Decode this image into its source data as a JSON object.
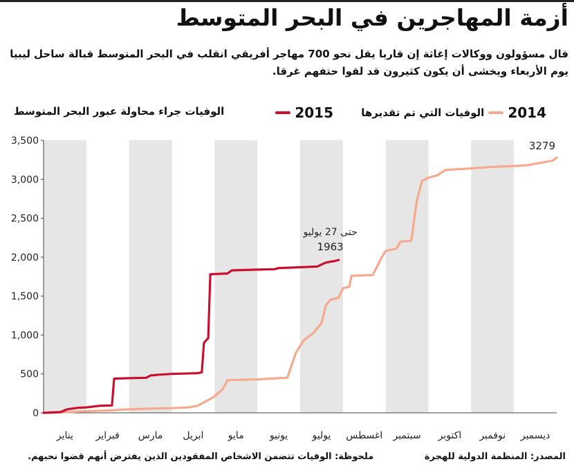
{
  "title": "أزمة المهاجرين في البحر المتوسط",
  "subtitle": "قال مسؤولون ووكالات إغاثة إن قاربا يقل نحو 700 مهاجر أفريقي انقلب في البحر المتوسط قبالة ساحل ليبيا يوم الأربعاء ويخشى أن يكون كثيرون قد لقوا حتفهم غرقا.",
  "footer": {
    "source": "المصدر: المنظمة الدولية للهجرة",
    "note": "ملحوظة: الوفيات تتضمن الاشخاص المفقودين الذين يفترض أنهم قضوا نحبهم."
  },
  "colors": {
    "series_2014": "#f6a98d",
    "series_2015": "#c8102e",
    "band": "#e6e6e6",
    "axis": "#444444"
  },
  "chart_data": {
    "type": "line",
    "ylabel": "الوفيات جراء محاولة عبور البحر المتوسط",
    "ylim": [
      0,
      3500
    ],
    "yticks": [
      0,
      500,
      1000,
      1500,
      2000,
      2500,
      3000,
      3500
    ],
    "ytick_labels": [
      "0",
      "500",
      "1,000",
      "1,500",
      "2,000",
      "2,500",
      "3,000",
      "3,500"
    ],
    "xlim": [
      1,
      13
    ],
    "months": [
      "يناير",
      "فبراير",
      "مارس",
      "ابريل",
      "مايو",
      "يونيو",
      "يوليو",
      "اغسطس",
      "سبتمبر",
      "اكتوبر",
      "نوفمبر",
      "ديسمبر"
    ],
    "grid": false,
    "legend_position": "top",
    "series": [
      {
        "name": "الوفيات التي تم تقديرها",
        "year": "2014",
        "color": "#f6a98d",
        "end_label": "3279",
        "points": [
          [
            1.0,
            0
          ],
          [
            1.5,
            8
          ],
          [
            2.0,
            20
          ],
          [
            2.5,
            30
          ],
          [
            3.0,
            45
          ],
          [
            3.5,
            55
          ],
          [
            4.0,
            60
          ],
          [
            4.4,
            70
          ],
          [
            4.6,
            90
          ],
          [
            4.8,
            150
          ],
          [
            5.0,
            210
          ],
          [
            5.2,
            310
          ],
          [
            5.3,
            420
          ],
          [
            5.6,
            425
          ],
          [
            6.0,
            430
          ],
          [
            6.5,
            445
          ],
          [
            6.7,
            450
          ],
          [
            6.8,
            610
          ],
          [
            6.9,
            770
          ],
          [
            7.0,
            860
          ],
          [
            7.1,
            940
          ],
          [
            7.3,
            1020
          ],
          [
            7.5,
            1150
          ],
          [
            7.6,
            1380
          ],
          [
            7.7,
            1450
          ],
          [
            7.9,
            1480
          ],
          [
            8.0,
            1600
          ],
          [
            8.15,
            1620
          ],
          [
            8.2,
            1760
          ],
          [
            8.7,
            1770
          ],
          [
            8.9,
            1990
          ],
          [
            9.0,
            2080
          ],
          [
            9.25,
            2110
          ],
          [
            9.35,
            2200
          ],
          [
            9.6,
            2210
          ],
          [
            9.7,
            2620
          ],
          [
            9.75,
            2770
          ],
          [
            9.85,
            2980
          ],
          [
            10.0,
            3020
          ],
          [
            10.2,
            3050
          ],
          [
            10.4,
            3120
          ],
          [
            11.0,
            3140
          ],
          [
            11.5,
            3160
          ],
          [
            12.0,
            3170
          ],
          [
            12.3,
            3180
          ],
          [
            12.5,
            3200
          ],
          [
            12.9,
            3240
          ],
          [
            13.0,
            3279
          ]
        ]
      },
      {
        "name": "",
        "year": "2015",
        "color": "#c8102e",
        "end_label": "1963",
        "end_label_prefix": "حتى 27 يوليو",
        "points": [
          [
            1.0,
            0
          ],
          [
            1.4,
            10
          ],
          [
            1.55,
            45
          ],
          [
            1.8,
            65
          ],
          [
            2.0,
            70
          ],
          [
            2.3,
            90
          ],
          [
            2.6,
            95
          ],
          [
            2.65,
            440
          ],
          [
            3.0,
            445
          ],
          [
            3.4,
            450
          ],
          [
            3.5,
            480
          ],
          [
            3.7,
            490
          ],
          [
            4.0,
            500
          ],
          [
            4.3,
            505
          ],
          [
            4.6,
            510
          ],
          [
            4.7,
            520
          ],
          [
            4.75,
            900
          ],
          [
            4.85,
            960
          ],
          [
            4.9,
            1780
          ],
          [
            5.3,
            1790
          ],
          [
            5.4,
            1830
          ],
          [
            6.0,
            1840
          ],
          [
            6.4,
            1845
          ],
          [
            6.5,
            1860
          ],
          [
            7.0,
            1870
          ],
          [
            7.4,
            1880
          ],
          [
            7.6,
            1930
          ],
          [
            7.8,
            1950
          ],
          [
            7.9,
            1963
          ]
        ]
      }
    ]
  }
}
